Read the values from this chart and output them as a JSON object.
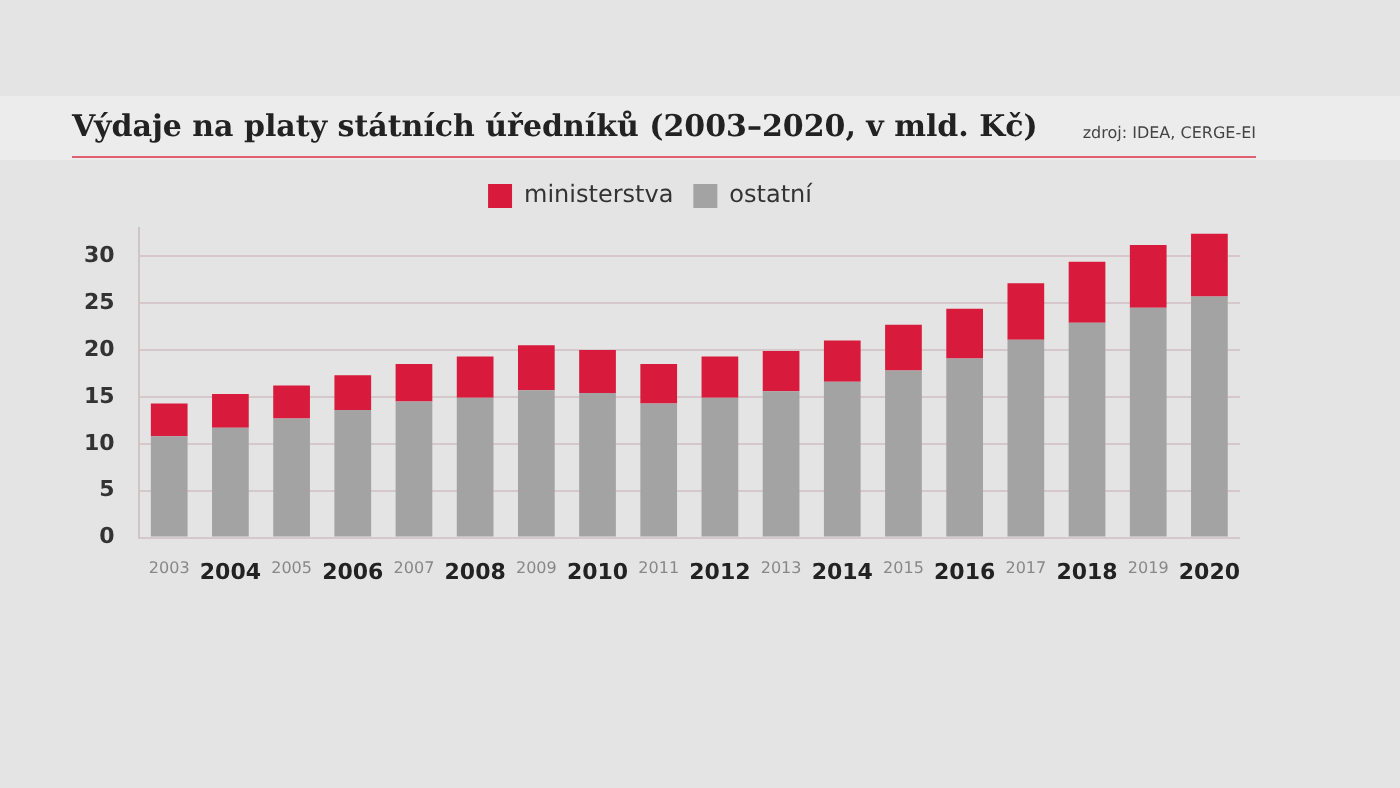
{
  "chart_data": {
    "type": "bar",
    "title": "Výdaje na platy státních úředníků (2003–2020, v mld. Kč)",
    "annotations": [
      "zdroj: IDEA, CERGE-EI"
    ],
    "categories": [
      "2003",
      "2004",
      "2005",
      "2006",
      "2007",
      "2008",
      "2009",
      "2010",
      "2011",
      "2012",
      "2013",
      "2014",
      "2015",
      "2016",
      "2017",
      "2018",
      "2019",
      "2020"
    ],
    "series": [
      {
        "name": "ostatní",
        "color": "#a3a3a3",
        "values": [
          10.8,
          11.7,
          12.7,
          13.6,
          14.5,
          14.9,
          15.7,
          15.4,
          14.3,
          14.9,
          15.6,
          16.6,
          17.8,
          19.1,
          21.1,
          22.9,
          24.5,
          25.7
        ]
      },
      {
        "name": "ministerstva",
        "color": "#d81b3c",
        "values": [
          3.5,
          3.6,
          3.5,
          3.7,
          4.0,
          4.4,
          4.8,
          4.6,
          4.2,
          4.4,
          4.3,
          4.4,
          4.9,
          5.3,
          6.0,
          6.5,
          6.7,
          6.7
        ]
      }
    ],
    "stacked": true,
    "ylim": [
      0,
      33
    ],
    "yticks": [
      0,
      5,
      10,
      15,
      20,
      25,
      30
    ],
    "grid": "y",
    "legend": "top"
  }
}
